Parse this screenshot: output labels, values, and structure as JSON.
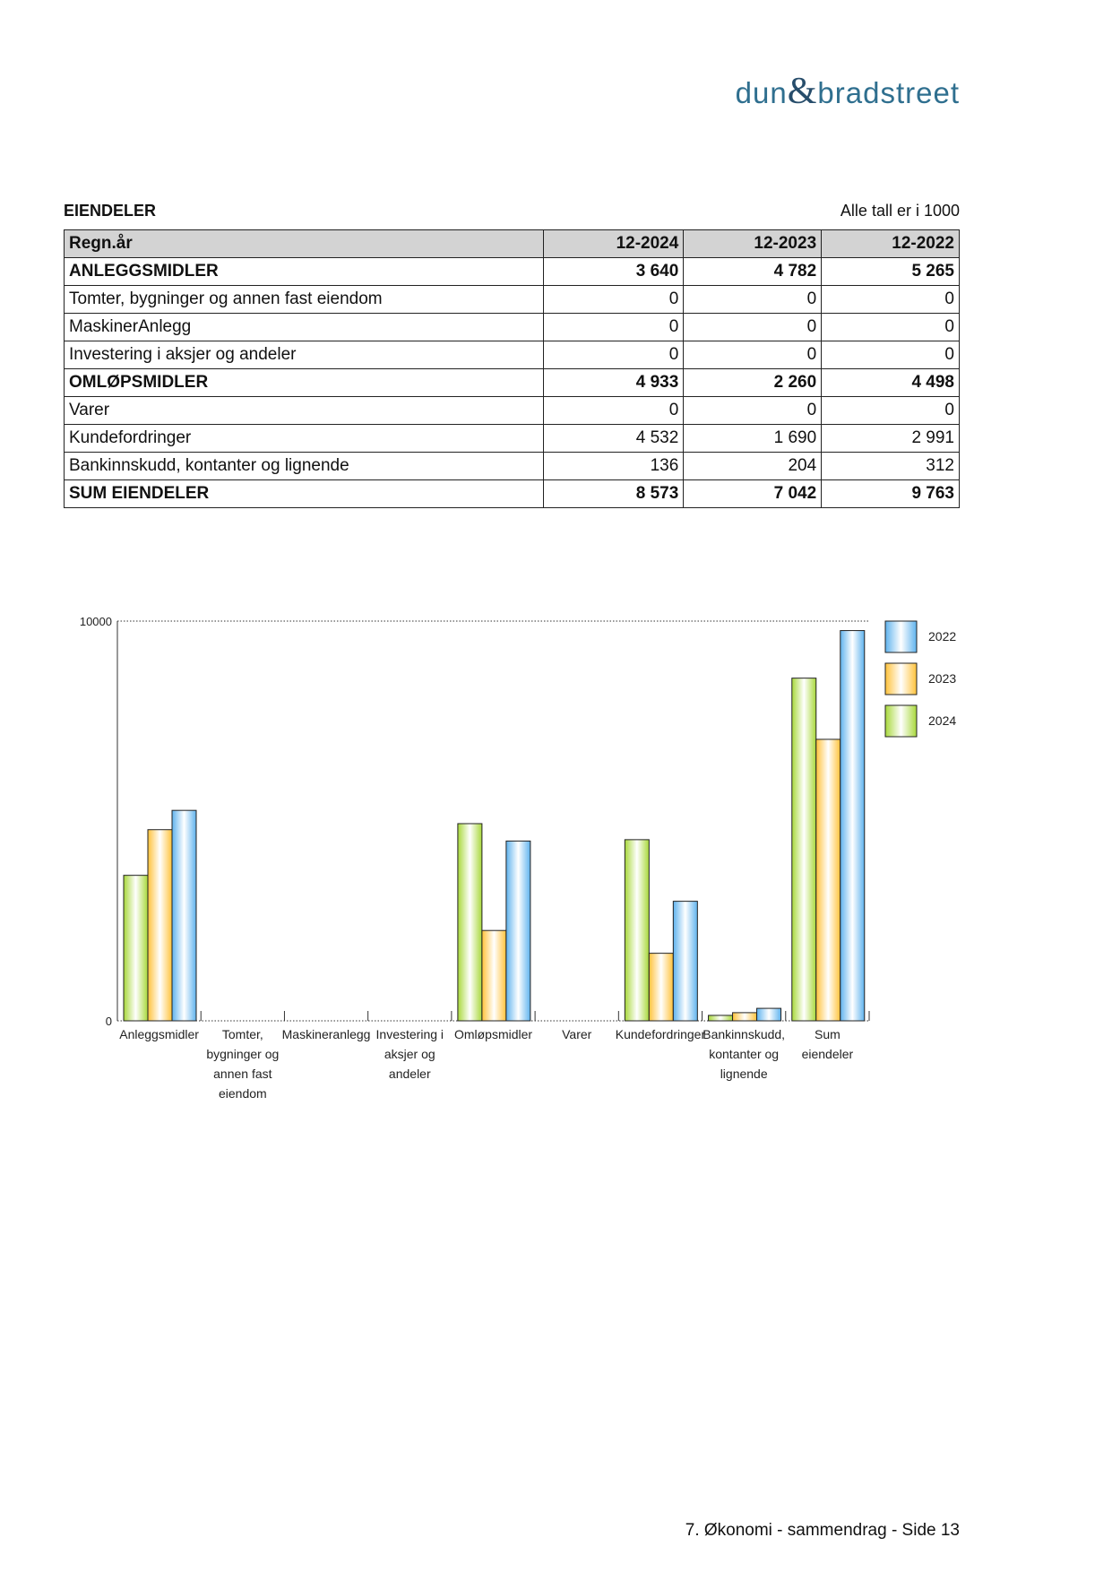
{
  "header": {
    "logo": [
      "dun",
      "&",
      "bradstreet"
    ]
  },
  "section": {
    "title": "EIENDELER",
    "note": "Alle tall er i 1000"
  },
  "table": {
    "columns": [
      "Regn.år",
      "12-2024",
      "12-2023",
      "12-2022"
    ],
    "rows": [
      [
        "ANLEGGSMIDLER",
        "3 640",
        "4 782",
        "5 265"
      ],
      [
        "Tomter, bygninger og annen fast eiendom",
        "0",
        "0",
        "0"
      ],
      [
        "MaskinerAnlegg",
        "0",
        "0",
        "0"
      ],
      [
        "Investering i aksjer og andeler",
        "0",
        "0",
        "0"
      ],
      [
        "OMLØPSMIDLER",
        "4 933",
        "2 260",
        "4 498"
      ],
      [
        "Varer",
        "0",
        "0",
        "0"
      ],
      [
        "Kundefordringer",
        "4 532",
        "1 690",
        "2 991"
      ],
      [
        "Bankinnskudd, kontanter og lignende",
        "136",
        "204",
        "312"
      ],
      [
        "SUM EIENDELER",
        "8 573",
        "7 042",
        "9 763"
      ]
    ]
  },
  "chart_data": {
    "type": "bar",
    "categories": [
      "Anleggsmidler",
      "Tomter, bygninger og annen fast eiendom",
      "Maskineranlegg",
      "Investering i aksjer og andeler",
      "Omløpsmidler",
      "Varer",
      "Kundefordringer",
      "Bankinnskudd, kontanter og lignende",
      "Sum eiendeler"
    ],
    "series": [
      {
        "name": "2024",
        "color": "#a8d83a",
        "values": [
          3640,
          0,
          0,
          0,
          4933,
          0,
          4532,
          136,
          8573
        ]
      },
      {
        "name": "2023",
        "color": "#ffc23a",
        "values": [
          4782,
          0,
          0,
          0,
          2260,
          0,
          1690,
          204,
          7042
        ]
      },
      {
        "name": "2022",
        "color": "#5fb3ee",
        "values": [
          5265,
          0,
          0,
          0,
          4498,
          0,
          2991,
          312,
          9763
        ]
      }
    ],
    "ylim": [
      0,
      10000
    ],
    "yticks": [
      0,
      10000
    ]
  },
  "footer": {
    "text": "7. Økonomi - sammendrag - Side 13"
  }
}
